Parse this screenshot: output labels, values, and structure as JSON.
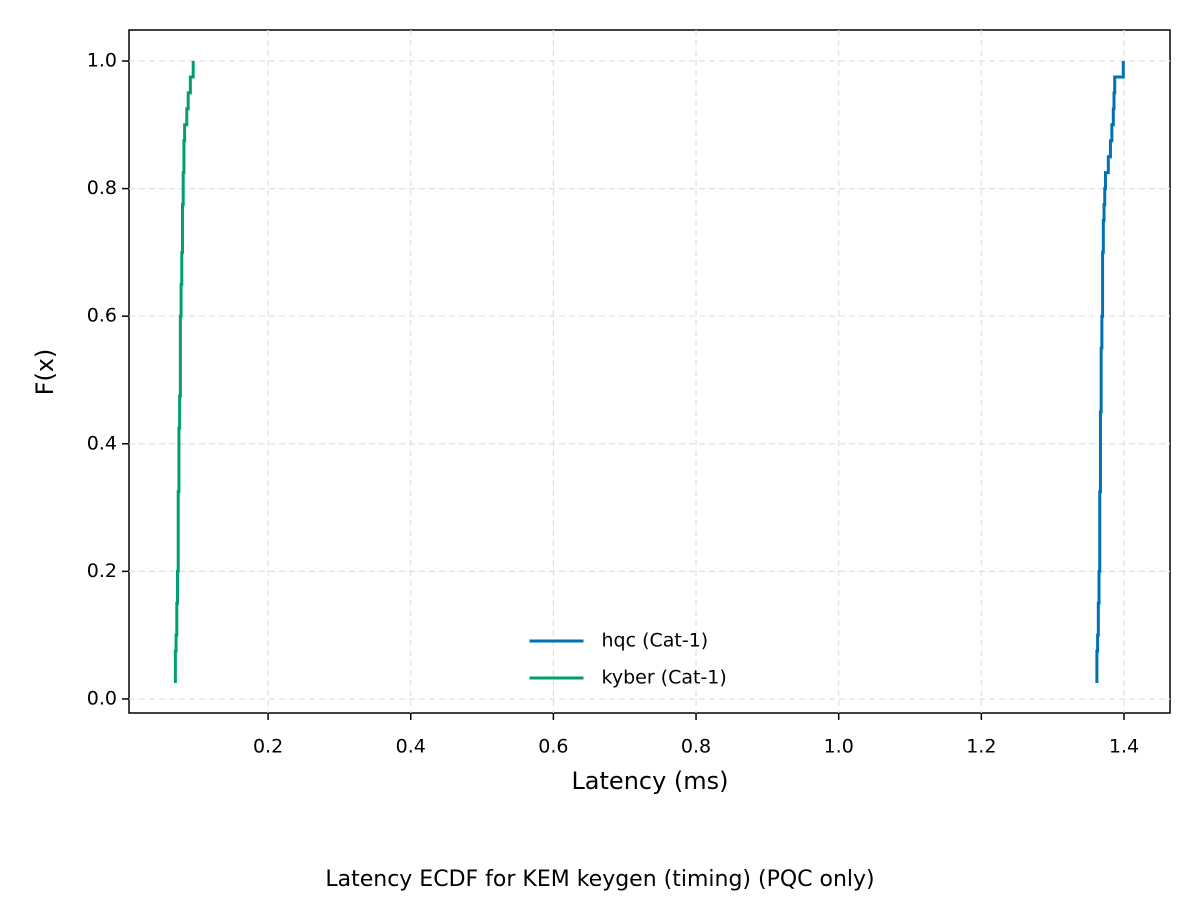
{
  "chart_data": {
    "type": "step",
    "title": "Latency ECDF for KEM keygen (timing) (PQC only)",
    "xlabel": "Latency (ms)",
    "ylabel": "F(x)",
    "xlim": [
      0.005,
      1.4645
    ],
    "ylim": [
      -0.022,
      1.0486
    ],
    "xticks": [
      0.2,
      0.4,
      0.6,
      0.8,
      {
        "value": 1.0,
        "label": "1.0"
      },
      1.2,
      1.4
    ],
    "yticks": [
      {
        "value": 0.0,
        "label": "0.0"
      },
      0.2,
      0.4,
      0.6,
      0.8,
      {
        "value": 1.0,
        "label": "1.0"
      }
    ],
    "grid": true,
    "legend": "lower center",
    "series": [
      {
        "name": "hqc (Cat-1)",
        "color": "#0072b2",
        "x": [
          1.362,
          1.362,
          1.362,
          1.363,
          1.364,
          1.364,
          1.365,
          1.365,
          1.366,
          1.366,
          1.366,
          1.366,
          1.366,
          1.367,
          1.367,
          1.367,
          1.367,
          1.367,
          1.368,
          1.368,
          1.368,
          1.368,
          1.369,
          1.369,
          1.37,
          1.37,
          1.37,
          1.37,
          1.371,
          1.371,
          1.372,
          1.373,
          1.374,
          1.378,
          1.381,
          1.383,
          1.385,
          1.386,
          1.387,
          1.399
        ],
        "values": [
          0.025,
          0.05,
          0.075,
          0.1,
          0.125,
          0.15,
          0.175,
          0.2,
          0.225,
          0.25,
          0.275,
          0.3,
          0.325,
          0.35,
          0.375,
          0.4,
          0.425,
          0.45,
          0.475,
          0.5,
          0.525,
          0.55,
          0.575,
          0.6,
          0.625,
          0.65,
          0.675,
          0.7,
          0.725,
          0.75,
          0.775,
          0.8,
          0.825,
          0.85,
          0.875,
          0.9,
          0.925,
          0.95,
          0.975,
          1.0
        ]
      },
      {
        "name": "kyber (Cat-1)",
        "color": "#009e73",
        "x": [
          0.07,
          0.07,
          0.07,
          0.071,
          0.072,
          0.072,
          0.073,
          0.073,
          0.074,
          0.074,
          0.074,
          0.074,
          0.074,
          0.075,
          0.075,
          0.075,
          0.075,
          0.076,
          0.076,
          0.077,
          0.077,
          0.077,
          0.077,
          0.077,
          0.078,
          0.078,
          0.079,
          0.079,
          0.08,
          0.08,
          0.08,
          0.081,
          0.081,
          0.082,
          0.082,
          0.083,
          0.086,
          0.088,
          0.091,
          0.095
        ],
        "values": [
          0.025,
          0.05,
          0.075,
          0.1,
          0.125,
          0.15,
          0.175,
          0.2,
          0.225,
          0.25,
          0.275,
          0.3,
          0.325,
          0.35,
          0.375,
          0.4,
          0.425,
          0.45,
          0.475,
          0.5,
          0.525,
          0.55,
          0.575,
          0.6,
          0.625,
          0.65,
          0.675,
          0.7,
          0.725,
          0.75,
          0.775,
          0.8,
          0.825,
          0.85,
          0.875,
          0.9,
          0.925,
          0.95,
          0.975,
          1.0
        ]
      }
    ]
  }
}
